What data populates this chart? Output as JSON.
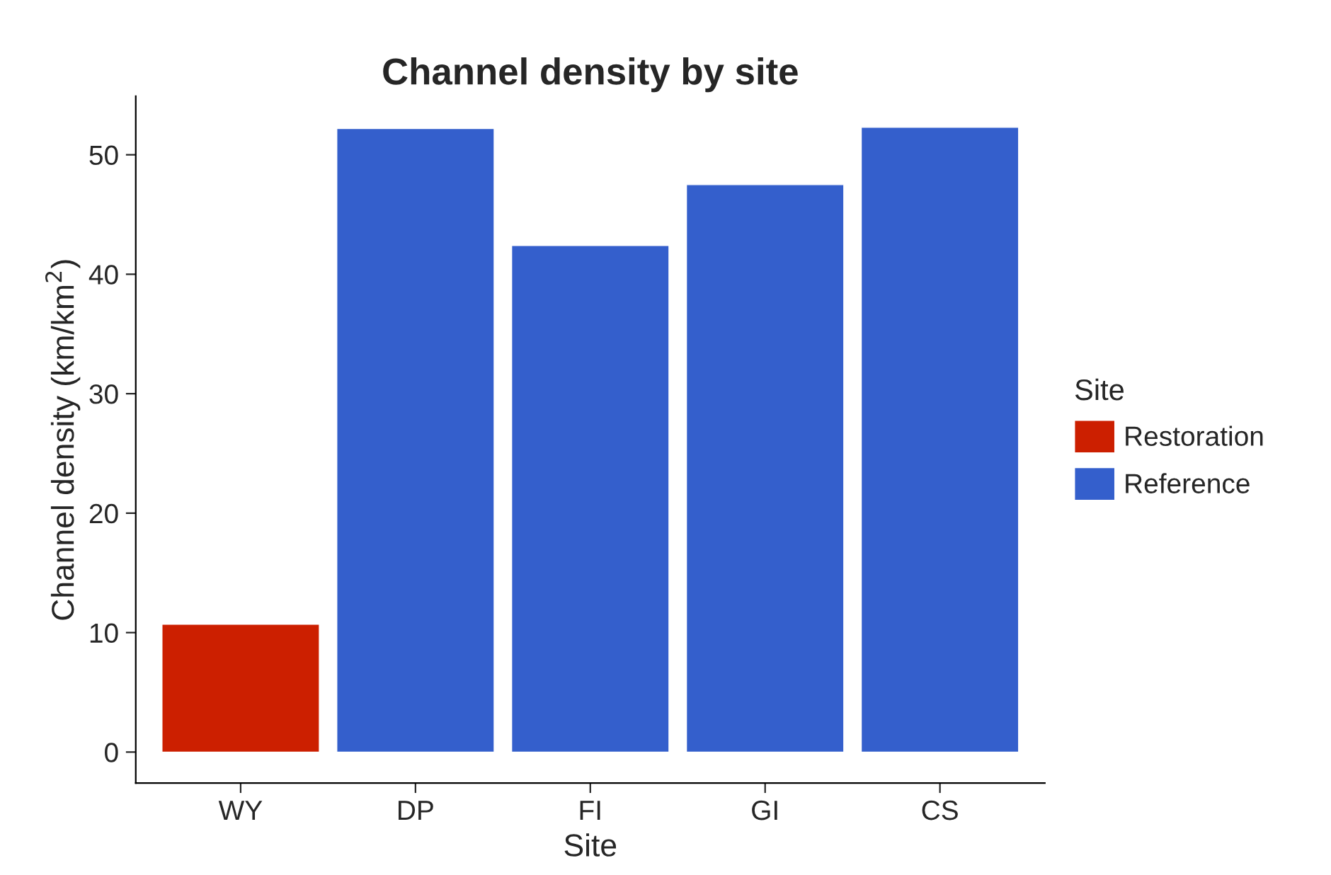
{
  "chart_data": {
    "type": "bar",
    "title": "Channel density by site",
    "xlabel": "Site",
    "ylabel": "Channel density (km/km$^{2}$)",
    "legend_title": "Site",
    "categories": [
      "WY",
      "DP",
      "FI",
      "GI",
      "CS"
    ],
    "series": [
      {
        "name": "Restoration",
        "color": "#cc1f00",
        "values": [
          10.7,
          null,
          null,
          null,
          null
        ]
      },
      {
        "name": "Reference",
        "color": "#345fcc",
        "values": [
          null,
          52.2,
          42.4,
          47.5,
          52.3
        ]
      }
    ],
    "ylim": [
      -2.6,
      54.9
    ],
    "yticks": [
      0,
      10,
      20,
      30,
      40,
      50
    ],
    "grid": false,
    "legend": "right"
  }
}
